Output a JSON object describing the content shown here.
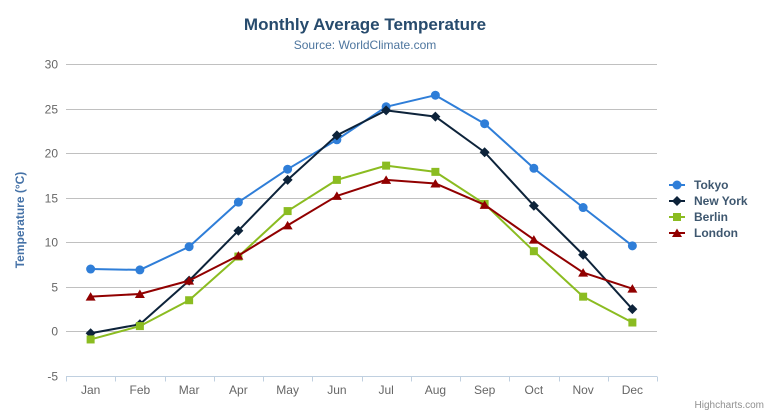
{
  "header": {
    "title": "Monthly Average Temperature",
    "subtitle": "Source: WorldClimate.com"
  },
  "credits": {
    "text": "Highcharts.com"
  },
  "export_menu": {
    "icon": "hamburger-icon"
  },
  "colors": {
    "title_text": "#274b6d",
    "subtitle_text": "#4d759e",
    "axis_label_text": "#666666",
    "yaxis_title_text": "#4572a7",
    "gridline": "#c0c0c0",
    "axis_line": "#c0d0e0",
    "legend_text": "#3e576f",
    "credits_text": "#909090"
  },
  "chart_data": {
    "type": "line",
    "title": "Monthly Average Temperature",
    "subtitle": "Source: WorldClimate.com",
    "xlabel": "",
    "ylabel": "Temperature (°C)",
    "ylim": [
      -5,
      30
    ],
    "ytick_step": 5,
    "grid": true,
    "legend_position": "right",
    "categories": [
      "Jan",
      "Feb",
      "Mar",
      "Apr",
      "May",
      "Jun",
      "Jul",
      "Aug",
      "Sep",
      "Oct",
      "Nov",
      "Dec"
    ],
    "series": [
      {
        "name": "Tokyo",
        "color": "#2f7ed8",
        "marker": "circle",
        "values": [
          7.0,
          6.9,
          9.5,
          14.5,
          18.2,
          21.5,
          25.2,
          26.5,
          23.3,
          18.3,
          13.9,
          9.6
        ]
      },
      {
        "name": "New York",
        "color": "#0d233a",
        "marker": "diamond",
        "values": [
          -0.2,
          0.8,
          5.7,
          11.3,
          17.0,
          22.0,
          24.8,
          24.1,
          20.1,
          14.1,
          8.6,
          2.5
        ]
      },
      {
        "name": "Berlin",
        "color": "#8bbc21",
        "marker": "square",
        "values": [
          -0.9,
          0.6,
          3.5,
          8.4,
          13.5,
          17.0,
          18.6,
          17.9,
          14.3,
          9.0,
          3.9,
          1.0
        ]
      },
      {
        "name": "London",
        "color": "#910000",
        "marker": "triangle",
        "values": [
          3.9,
          4.2,
          5.7,
          8.5,
          11.9,
          15.2,
          17.0,
          16.6,
          14.2,
          10.3,
          6.6,
          4.8
        ]
      }
    ]
  }
}
